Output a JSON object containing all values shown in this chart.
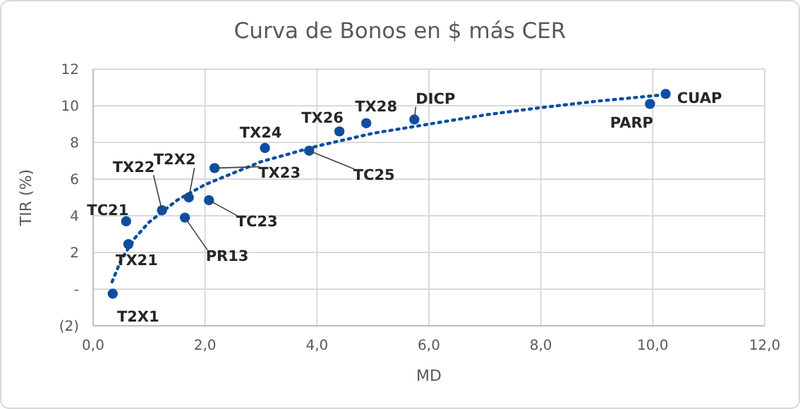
{
  "chart_data": {
    "type": "scatter",
    "title": "Curva de Bonos en $ más CER",
    "xlabel": "MD",
    "ylabel": "TIR (%)",
    "xlim": [
      0,
      12
    ],
    "xticks": [
      {
        "value": 0,
        "label": "0,0"
      },
      {
        "value": 2,
        "label": "2,0"
      },
      {
        "value": 4,
        "label": "4,0"
      },
      {
        "value": 6,
        "label": "6,0"
      },
      {
        "value": 8,
        "label": "8,0"
      },
      {
        "value": 10,
        "label": "10,0"
      },
      {
        "value": 12,
        "label": "12,0"
      }
    ],
    "ylim": [
      -2,
      12
    ],
    "yticks": [
      {
        "value": -2,
        "label": "(2)"
      },
      {
        "value": 0,
        "label": "-"
      },
      2,
      4,
      6,
      8,
      10,
      12
    ],
    "grid": true,
    "marker": "circle",
    "series": [
      {
        "color": "#0b4ea2",
        "x": [
          0.35,
          0.59,
          0.63,
          1.23,
          1.71,
          1.64,
          2.07,
          2.17,
          3.07,
          3.86,
          4.4,
          4.88,
          5.74,
          9.95,
          10.23
        ],
        "values": [
          -0.25,
          3.7,
          2.45,
          4.3,
          5.0,
          3.9,
          4.85,
          6.6,
          7.7,
          7.55,
          8.6,
          9.05,
          9.25,
          10.1,
          10.65
        ]
      },
      {
        "type": "line",
        "color": "#0b4ea2",
        "line_style": "dotted",
        "marker": "none",
        "x": [
          0.34,
          0.5,
          0.75,
          1,
          1.5,
          2,
          3,
          4,
          5,
          6,
          7,
          8,
          9,
          10.2
        ],
        "values": [
          0.4,
          1.6,
          2.8,
          3.65,
          4.85,
          5.7,
          6.95,
          7.8,
          8.5,
          9.0,
          9.5,
          9.9,
          10.25,
          10.6
        ]
      }
    ],
    "annotations": [
      {
        "text": "T2X1",
        "x": 0.35,
        "y": -0.25
      },
      {
        "text": "TC21",
        "x": 0.59,
        "y": 3.7
      },
      {
        "text": "TX21",
        "x": 0.63,
        "y": 2.45
      },
      {
        "text": "TX22",
        "x": 1.23,
        "y": 4.3
      },
      {
        "text": "T2X2",
        "x": 1.71,
        "y": 5.0
      },
      {
        "text": "PR13",
        "x": 1.64,
        "y": 3.9
      },
      {
        "text": "TC23",
        "x": 2.07,
        "y": 4.85
      },
      {
        "text": "TX23",
        "x": 2.17,
        "y": 6.6
      },
      {
        "text": "TX24",
        "x": 3.07,
        "y": 7.7
      },
      {
        "text": "TC25",
        "x": 3.86,
        "y": 7.55
      },
      {
        "text": "TX26",
        "x": 4.4,
        "y": 8.6
      },
      {
        "text": "TX28",
        "x": 4.88,
        "y": 9.05
      },
      {
        "text": "DICP",
        "x": 5.74,
        "y": 9.25
      },
      {
        "text": "PARP",
        "x": 9.95,
        "y": 10.1
      },
      {
        "text": "CUAP",
        "x": 10.23,
        "y": 10.65
      }
    ]
  }
}
